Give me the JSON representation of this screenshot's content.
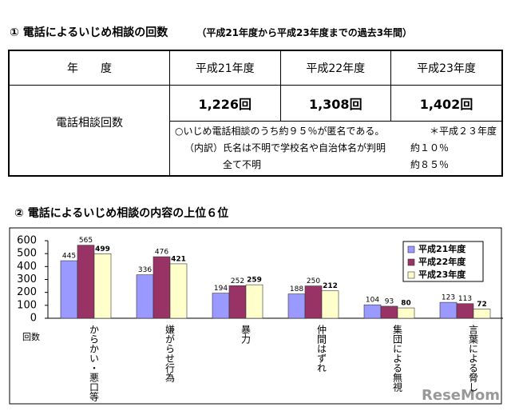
{
  "section1": {
    "title": "① 電話によるいじめ相談の回数",
    "subtitle": "（平成21年度から平成23年度までの過去3年間）",
    "table": {
      "header": [
        "年　　度",
        "平成21年度",
        "平成22年度",
        "平成23年度"
      ],
      "row_label": "電話相談回数",
      "counts": [
        "1,226回",
        "1,308回",
        "1,402回"
      ],
      "notes": [
        [
          "○いじめ電話相談のうち約９５％が匿名である。",
          "＊平成２３年度"
        ],
        [
          "（内訳）氏名は不明で学校名や自治体名が判明",
          "約１０％"
        ],
        [
          "全て不明",
          "約８５％"
        ]
      ]
    }
  },
  "chart_data": {
    "type": "bar",
    "title": "② 電話によるいじめ相談の内容の上位６位",
    "ylabel": "回数",
    "categories": [
      "からかい・悪口等",
      "嫌がらせ行為",
      "暴力",
      "仲間はずれ",
      "集団による無視",
      "言葉による脅し"
    ],
    "series": [
      {
        "name": "平成21年度",
        "color": "#9999ff",
        "values": [
          445,
          336,
          194,
          188,
          104,
          123
        ]
      },
      {
        "name": "平成22年度",
        "color": "#993366",
        "values": [
          565,
          476,
          252,
          250,
          93,
          113
        ]
      },
      {
        "name": "平成23年度",
        "color": "#ffffcc",
        "values": [
          499,
          421,
          259,
          212,
          80,
          72
        ]
      }
    ],
    "ylim": [
      0,
      600
    ],
    "yticks": [
      0,
      100,
      200,
      300,
      400,
      500,
      600
    ],
    "legend": "upper right"
  },
  "watermark": "ReseMom"
}
